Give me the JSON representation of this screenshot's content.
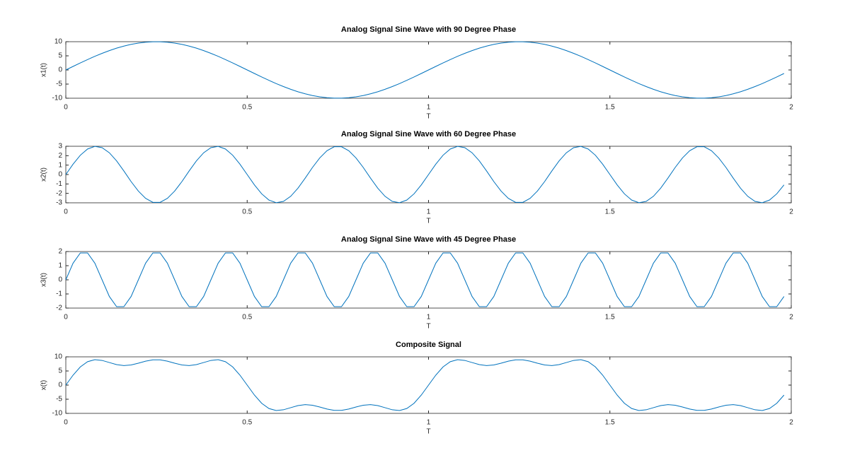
{
  "chart_data": [
    {
      "type": "line",
      "title": "Analog Signal Sine Wave with 90 Degree Phase",
      "xlabel": "T",
      "ylabel": "x1(t)",
      "color": "#0072bd",
      "xlim": [
        0,
        2
      ],
      "xticks": [
        0,
        0.5,
        1,
        1.5,
        2
      ],
      "ylim": [
        -10,
        10
      ],
      "yticks": [
        -10,
        -5,
        0,
        5,
        10
      ],
      "x": [
        0,
        0.02,
        0.04,
        0.06,
        0.08,
        0.1,
        0.12,
        0.14,
        0.16,
        0.18,
        0.2,
        0.22,
        0.24,
        0.26,
        0.28,
        0.3,
        0.32,
        0.34,
        0.36,
        0.38,
        0.4,
        0.42,
        0.44,
        0.46,
        0.48,
        0.5,
        0.52,
        0.54,
        0.56,
        0.58,
        0.6,
        0.62,
        0.64,
        0.66,
        0.68,
        0.7,
        0.72,
        0.74,
        0.76,
        0.78,
        0.8,
        0.82,
        0.84,
        0.86,
        0.88,
        0.9,
        0.92,
        0.94,
        0.96,
        0.98,
        1,
        1.02,
        1.04,
        1.06,
        1.08,
        1.1,
        1.12,
        1.14,
        1.16,
        1.18,
        1.2,
        1.22,
        1.24,
        1.26,
        1.28,
        1.3,
        1.32,
        1.34,
        1.36,
        1.38,
        1.4,
        1.42,
        1.44,
        1.46,
        1.48,
        1.5,
        1.52,
        1.54,
        1.56,
        1.58,
        1.6,
        1.62,
        1.64,
        1.66,
        1.68,
        1.7,
        1.72,
        1.74,
        1.76,
        1.78,
        1.8,
        1.82,
        1.84,
        1.86,
        1.88,
        1.9,
        1.92,
        1.94,
        1.96,
        1.98
      ],
      "values": [
        0,
        1.25,
        2.49,
        3.68,
        4.82,
        5.88,
        6.85,
        7.71,
        8.44,
        9.05,
        9.51,
        9.82,
        9.98,
        9.98,
        9.82,
        9.51,
        9.05,
        8.44,
        7.71,
        6.85,
        5.88,
        4.82,
        3.68,
        2.49,
        1.25,
        0,
        -1.25,
        -2.49,
        -3.68,
        -4.82,
        -5.88,
        -6.85,
        -7.71,
        -8.44,
        -9.05,
        -9.51,
        -9.82,
        -9.98,
        -9.98,
        -9.82,
        -9.51,
        -9.05,
        -8.44,
        -7.71,
        -6.85,
        -5.88,
        -4.82,
        -3.68,
        -2.49,
        -1.25,
        0,
        1.25,
        2.49,
        3.68,
        4.82,
        5.88,
        6.85,
        7.71,
        8.44,
        9.05,
        9.51,
        9.82,
        9.98,
        9.98,
        9.82,
        9.51,
        9.05,
        8.44,
        7.71,
        6.85,
        5.88,
        4.82,
        3.68,
        2.49,
        1.25,
        0,
        -1.25,
        -2.49,
        -3.68,
        -4.82,
        -5.88,
        -6.85,
        -7.71,
        -8.44,
        -9.05,
        -9.51,
        -9.82,
        -9.98,
        -9.98,
        -9.82,
        -9.51,
        -9.05,
        -8.44,
        -7.71,
        -6.85,
        -5.88,
        -4.82,
        -3.68,
        -2.49,
        -1.25
      ]
    },
    {
      "type": "line",
      "title": "Analog Signal Sine Wave with 60 Degree Phase",
      "xlabel": "T",
      "ylabel": "x2(t)",
      "color": "#0072bd",
      "xlim": [
        0,
        2
      ],
      "xticks": [
        0,
        0.5,
        1,
        1.5,
        2
      ],
      "ylim": [
        -3,
        3
      ],
      "yticks": [
        -3,
        -2,
        -1,
        0,
        1,
        2,
        3
      ],
      "x": [
        0,
        0.02,
        0.04,
        0.06,
        0.08,
        0.1,
        0.12,
        0.14,
        0.16,
        0.18,
        0.2,
        0.22,
        0.24,
        0.26,
        0.28,
        0.3,
        0.32,
        0.34,
        0.36,
        0.38,
        0.4,
        0.42,
        0.44,
        0.46,
        0.48,
        0.5,
        0.52,
        0.54,
        0.56,
        0.58,
        0.6,
        0.62,
        0.64,
        0.66,
        0.68,
        0.7,
        0.72,
        0.74,
        0.76,
        0.78,
        0.8,
        0.82,
        0.84,
        0.86,
        0.88,
        0.9,
        0.92,
        0.94,
        0.96,
        0.98,
        1,
        1.02,
        1.04,
        1.06,
        1.08,
        1.1,
        1.12,
        1.14,
        1.16,
        1.18,
        1.2,
        1.22,
        1.24,
        1.26,
        1.28,
        1.3,
        1.32,
        1.34,
        1.36,
        1.38,
        1.4,
        1.42,
        1.44,
        1.46,
        1.48,
        1.5,
        1.52,
        1.54,
        1.56,
        1.58,
        1.6,
        1.62,
        1.64,
        1.66,
        1.68,
        1.7,
        1.72,
        1.74,
        1.76,
        1.78,
        1.8,
        1.82,
        1.84,
        1.86,
        1.88,
        1.9,
        1.92,
        1.94,
        1.96,
        1.98
      ],
      "values": [
        0,
        1.1,
        2.05,
        2.71,
        2.99,
        2.85,
        2.31,
        1.45,
        0.38,
        -0.75,
        -1.76,
        -2.53,
        -2.95,
        -2.95,
        -2.53,
        -1.76,
        -0.75,
        0.38,
        1.45,
        2.31,
        2.85,
        2.99,
        2.71,
        2.05,
        1.1,
        0,
        -1.1,
        -2.05,
        -2.71,
        -2.99,
        -2.85,
        -2.31,
        -1.45,
        -0.38,
        0.75,
        1.76,
        2.53,
        2.95,
        2.95,
        2.53,
        1.76,
        0.75,
        -0.38,
        -1.45,
        -2.31,
        -2.85,
        -2.99,
        -2.71,
        -2.05,
        -1.1,
        0,
        1.1,
        2.05,
        2.71,
        2.99,
        2.85,
        2.31,
        1.45,
        0.38,
        -0.75,
        -1.76,
        -2.53,
        -2.95,
        -2.95,
        -2.53,
        -1.76,
        -0.75,
        0.38,
        1.45,
        2.31,
        2.85,
        2.99,
        2.71,
        2.05,
        1.1,
        0,
        -1.1,
        -2.05,
        -2.71,
        -2.99,
        -2.85,
        -2.31,
        -1.45,
        -0.38,
        0.75,
        1.76,
        2.53,
        2.95,
        2.95,
        2.53,
        1.76,
        0.75,
        -0.38,
        -1.45,
        -2.31,
        -2.85,
        -2.99,
        -2.71,
        -2.05,
        -1.1
      ]
    },
    {
      "type": "line",
      "title": "Analog Signal Sine Wave with 45 Degree Phase",
      "xlabel": "T",
      "ylabel": "x3(t)",
      "color": "#0072bd",
      "xlim": [
        0,
        2
      ],
      "xticks": [
        0,
        0.5,
        1,
        1.5,
        2
      ],
      "ylim": [
        -2,
        2
      ],
      "yticks": [
        -2,
        -1,
        0,
        1,
        2
      ],
      "x": [
        0,
        0.02,
        0.04,
        0.06,
        0.08,
        0.1,
        0.12,
        0.14,
        0.16,
        0.18,
        0.2,
        0.22,
        0.24,
        0.26,
        0.28,
        0.3,
        0.32,
        0.34,
        0.36,
        0.38,
        0.4,
        0.42,
        0.44,
        0.46,
        0.48,
        0.5,
        0.52,
        0.54,
        0.56,
        0.58,
        0.6,
        0.62,
        0.64,
        0.66,
        0.68,
        0.7,
        0.72,
        0.74,
        0.76,
        0.78,
        0.8,
        0.82,
        0.84,
        0.86,
        0.88,
        0.9,
        0.92,
        0.94,
        0.96,
        0.98,
        1,
        1.02,
        1.04,
        1.06,
        1.08,
        1.1,
        1.12,
        1.14,
        1.16,
        1.18,
        1.2,
        1.22,
        1.24,
        1.26,
        1.28,
        1.3,
        1.32,
        1.34,
        1.36,
        1.38,
        1.4,
        1.42,
        1.44,
        1.46,
        1.48,
        1.5,
        1.52,
        1.54,
        1.56,
        1.58,
        1.6,
        1.62,
        1.64,
        1.66,
        1.68,
        1.7,
        1.72,
        1.74,
        1.76,
        1.78,
        1.8,
        1.82,
        1.84,
        1.86,
        1.88,
        1.9,
        1.92,
        1.94,
        1.96,
        1.98
      ],
      "values": [
        0,
        1.18,
        1.9,
        1.9,
        1.18,
        0,
        -1.18,
        -1.9,
        -1.9,
        -1.18,
        0,
        1.18,
        1.9,
        1.9,
        1.18,
        0,
        -1.18,
        -1.9,
        -1.9,
        -1.18,
        0,
        1.18,
        1.9,
        1.9,
        1.18,
        0,
        -1.18,
        -1.9,
        -1.9,
        -1.18,
        0,
        1.18,
        1.9,
        1.9,
        1.18,
        0,
        -1.18,
        -1.9,
        -1.9,
        -1.18,
        0,
        1.18,
        1.9,
        1.9,
        1.18,
        0,
        -1.18,
        -1.9,
        -1.9,
        -1.18,
        0,
        1.18,
        1.9,
        1.9,
        1.18,
        0,
        -1.18,
        -1.9,
        -1.9,
        -1.18,
        0,
        1.18,
        1.9,
        1.9,
        1.18,
        0,
        -1.18,
        -1.9,
        -1.9,
        -1.18,
        0,
        1.18,
        1.9,
        1.9,
        1.18,
        0,
        -1.18,
        -1.9,
        -1.9,
        -1.18,
        0,
        1.18,
        1.9,
        1.9,
        1.18,
        0,
        -1.18,
        -1.9,
        -1.9,
        -1.18,
        0,
        1.18,
        1.9,
        1.9,
        1.18,
        0,
        -1.18,
        -1.9,
        -1.9,
        -1.18
      ]
    },
    {
      "type": "line",
      "title": "Composite Signal",
      "xlabel": "T",
      "ylabel": "x(t)",
      "color": "#0072bd",
      "xlim": [
        0,
        2
      ],
      "xticks": [
        0,
        0.5,
        1,
        1.5,
        2
      ],
      "ylim": [
        -10,
        10
      ],
      "yticks": [
        -10,
        -5,
        0,
        5,
        10
      ],
      "x": [
        0,
        0.02,
        0.04,
        0.06,
        0.08,
        0.1,
        0.12,
        0.14,
        0.16,
        0.18,
        0.2,
        0.22,
        0.24,
        0.26,
        0.28,
        0.3,
        0.32,
        0.34,
        0.36,
        0.38,
        0.4,
        0.42,
        0.44,
        0.46,
        0.48,
        0.5,
        0.52,
        0.54,
        0.56,
        0.58,
        0.6,
        0.62,
        0.64,
        0.66,
        0.68,
        0.7,
        0.72,
        0.74,
        0.76,
        0.78,
        0.8,
        0.82,
        0.84,
        0.86,
        0.88,
        0.9,
        0.92,
        0.94,
        0.96,
        0.98,
        1,
        1.02,
        1.04,
        1.06,
        1.08,
        1.1,
        1.12,
        1.14,
        1.16,
        1.18,
        1.2,
        1.22,
        1.24,
        1.26,
        1.28,
        1.3,
        1.32,
        1.34,
        1.36,
        1.38,
        1.4,
        1.42,
        1.44,
        1.46,
        1.48,
        1.5,
        1.52,
        1.54,
        1.56,
        1.58,
        1.6,
        1.62,
        1.64,
        1.66,
        1.68,
        1.7,
        1.72,
        1.74,
        1.76,
        1.78,
        1.8,
        1.82,
        1.84,
        1.86,
        1.88,
        1.9,
        1.92,
        1.94,
        1.96,
        1.98
      ],
      "values": [
        0,
        3.53,
        6.44,
        8.29,
        8.99,
        8.73,
        7.98,
        7.26,
        6.92,
        7.12,
        7.75,
        8.47,
        8.93,
        8.93,
        8.47,
        7.75,
        7.12,
        6.92,
        7.26,
        7.98,
        8.73,
        8.99,
        8.29,
        6.44,
        3.53,
        0,
        -3.53,
        -6.44,
        -8.29,
        -8.99,
        -8.73,
        -7.98,
        -7.26,
        -6.92,
        -7.12,
        -7.75,
        -8.47,
        -8.93,
        -8.93,
        -8.47,
        -7.75,
        -7.12,
        -6.92,
        -7.26,
        -7.98,
        -8.73,
        -8.99,
        -8.29,
        -6.44,
        -3.53,
        0,
        3.53,
        6.44,
        8.29,
        8.99,
        8.73,
        7.98,
        7.26,
        6.92,
        7.12,
        7.75,
        8.47,
        8.93,
        8.93,
        8.47,
        7.75,
        7.12,
        6.92,
        7.26,
        7.98,
        8.73,
        8.99,
        8.29,
        6.44,
        3.53,
        0,
        -3.53,
        -6.44,
        -8.29,
        -8.99,
        -8.73,
        -7.98,
        -7.26,
        -6.92,
        -7.12,
        -7.75,
        -8.47,
        -8.93,
        -8.93,
        -8.47,
        -7.75,
        -7.12,
        -6.92,
        -7.26,
        -7.98,
        -8.73,
        -8.99,
        -8.29,
        -6.44,
        -3.53
      ]
    }
  ]
}
